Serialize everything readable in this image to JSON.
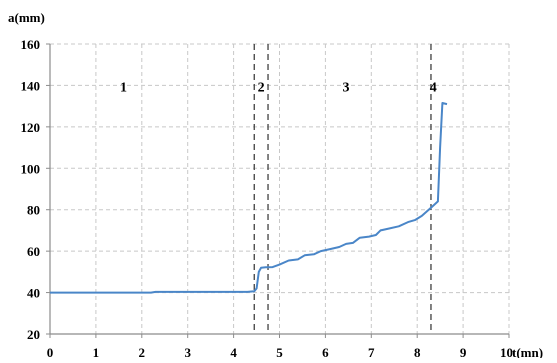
{
  "chart_data": {
    "type": "line",
    "ylabel": "a(mm)",
    "xlabel": "t(mn)",
    "xlim": [
      0,
      10
    ],
    "ylim": [
      20,
      160
    ],
    "xticks": [
      0,
      1,
      2,
      3,
      4,
      5,
      6,
      7,
      8,
      9,
      10
    ],
    "yticks": [
      20,
      40,
      60,
      80,
      100,
      120,
      140,
      160
    ],
    "grid": true,
    "series": [
      {
        "color": "#4a86c8",
        "points": [
          [
            0,
            40
          ],
          [
            2.2,
            40
          ],
          [
            2.3,
            40.3
          ],
          [
            3.5,
            40.3
          ],
          [
            4.3,
            40.3
          ],
          [
            4.45,
            40.6
          ],
          [
            4.5,
            42
          ],
          [
            4.55,
            50
          ],
          [
            4.6,
            52
          ],
          [
            4.7,
            52.2
          ],
          [
            4.85,
            52.3
          ],
          [
            5.0,
            53.5
          ],
          [
            5.2,
            55.5
          ],
          [
            5.4,
            56
          ],
          [
            5.55,
            58
          ],
          [
            5.75,
            58.5
          ],
          [
            5.9,
            60
          ],
          [
            6.1,
            61
          ],
          [
            6.3,
            62
          ],
          [
            6.45,
            63.5
          ],
          [
            6.6,
            64
          ],
          [
            6.75,
            66.5
          ],
          [
            6.95,
            67
          ],
          [
            7.1,
            67.8
          ],
          [
            7.2,
            70
          ],
          [
            7.4,
            71
          ],
          [
            7.6,
            72
          ],
          [
            7.8,
            74
          ],
          [
            7.95,
            75
          ],
          [
            8.1,
            77
          ],
          [
            8.25,
            80
          ],
          [
            8.35,
            82
          ],
          [
            8.45,
            84
          ],
          [
            8.5,
            110
          ],
          [
            8.55,
            131.5
          ],
          [
            8.65,
            131
          ]
        ]
      }
    ],
    "region_dividers": [
      4.45,
      4.75,
      8.3
    ],
    "region_labels": [
      {
        "text": "1",
        "x": 1.6,
        "y": 137
      },
      {
        "text": "2",
        "x": 4.6,
        "y": 137
      },
      {
        "text": "3",
        "x": 6.45,
        "y": 137
      },
      {
        "text": "4",
        "x": 8.35,
        "y": 137
      }
    ]
  }
}
